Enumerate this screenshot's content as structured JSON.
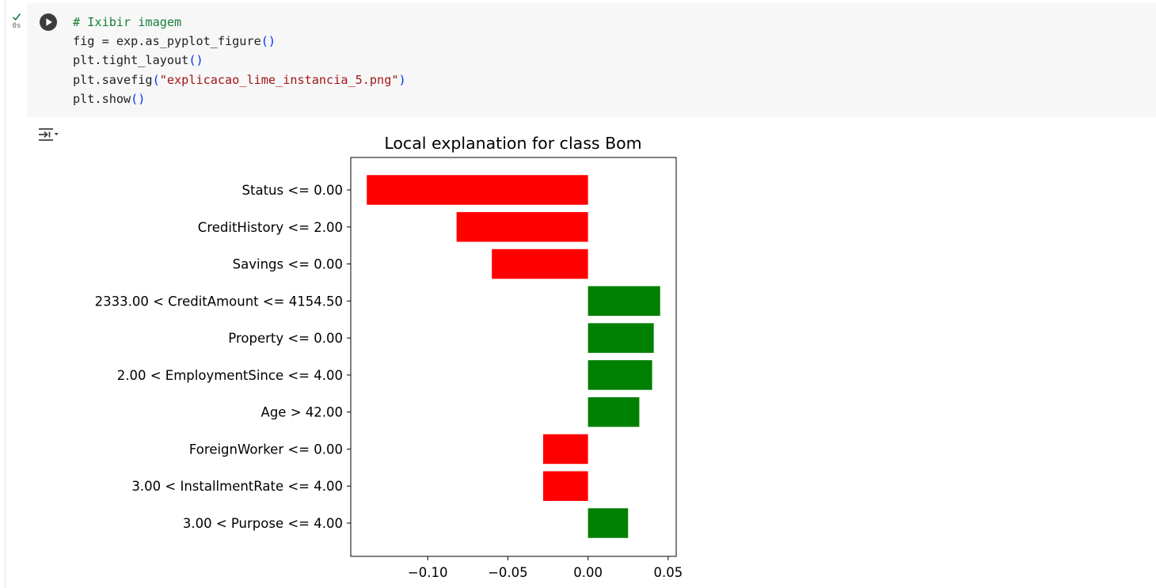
{
  "cell": {
    "exec_time": "0s",
    "code": [
      [
        {
          "t": "# Ixibir imagem",
          "c": "comment"
        }
      ],
      [
        {
          "t": "fig = exp.as_pyplot_figure",
          "c": ""
        },
        {
          "t": "()",
          "c": "paren"
        }
      ],
      [
        {
          "t": "plt.tight_layout",
          "c": ""
        },
        {
          "t": "()",
          "c": "paren"
        }
      ],
      [
        {
          "t": "plt.savefig",
          "c": ""
        },
        {
          "t": "(",
          "c": "paren"
        },
        {
          "t": "\"explicacao_lime_instancia_5.png\"",
          "c": "string"
        },
        {
          "t": ")",
          "c": "paren"
        }
      ],
      [
        {
          "t": "plt.show",
          "c": ""
        },
        {
          "t": "()",
          "c": "paren"
        }
      ]
    ]
  },
  "icons": {
    "exec_status": "check-icon",
    "run": "play-icon",
    "output_toggle": "output-toggle-icon"
  },
  "colors": {
    "negative_bar": "#ff0000",
    "positive_bar": "#008000",
    "cell_background": "#f7f7f7",
    "comment": "#188038",
    "string": "#a31515",
    "paren": "#0431fa"
  },
  "chart_data": {
    "type": "bar",
    "orientation": "horizontal",
    "title": "Local explanation for class Bom",
    "xlabel": "",
    "ylabel": "",
    "grid": false,
    "xlim": [
      -0.148,
      0.055
    ],
    "xticks": [
      -0.1,
      -0.05,
      0.0,
      0.05
    ],
    "xtick_labels": [
      "−0.10",
      "−0.05",
      "0.00",
      "0.05"
    ],
    "categories": [
      "Status <= 0.00",
      "CreditHistory <= 2.00",
      "Savings <= 0.00",
      "2333.00 < CreditAmount <= 4154.50",
      "Property <= 0.00",
      "2.00 < EmploymentSince <= 4.00",
      "Age > 42.00",
      "ForeignWorker <= 0.00",
      "3.00 < InstallmentRate <= 4.00",
      "3.00 < Purpose <= 4.00"
    ],
    "values": [
      -0.138,
      -0.082,
      -0.06,
      0.045,
      0.041,
      0.04,
      0.032,
      -0.028,
      -0.028,
      0.025
    ]
  }
}
